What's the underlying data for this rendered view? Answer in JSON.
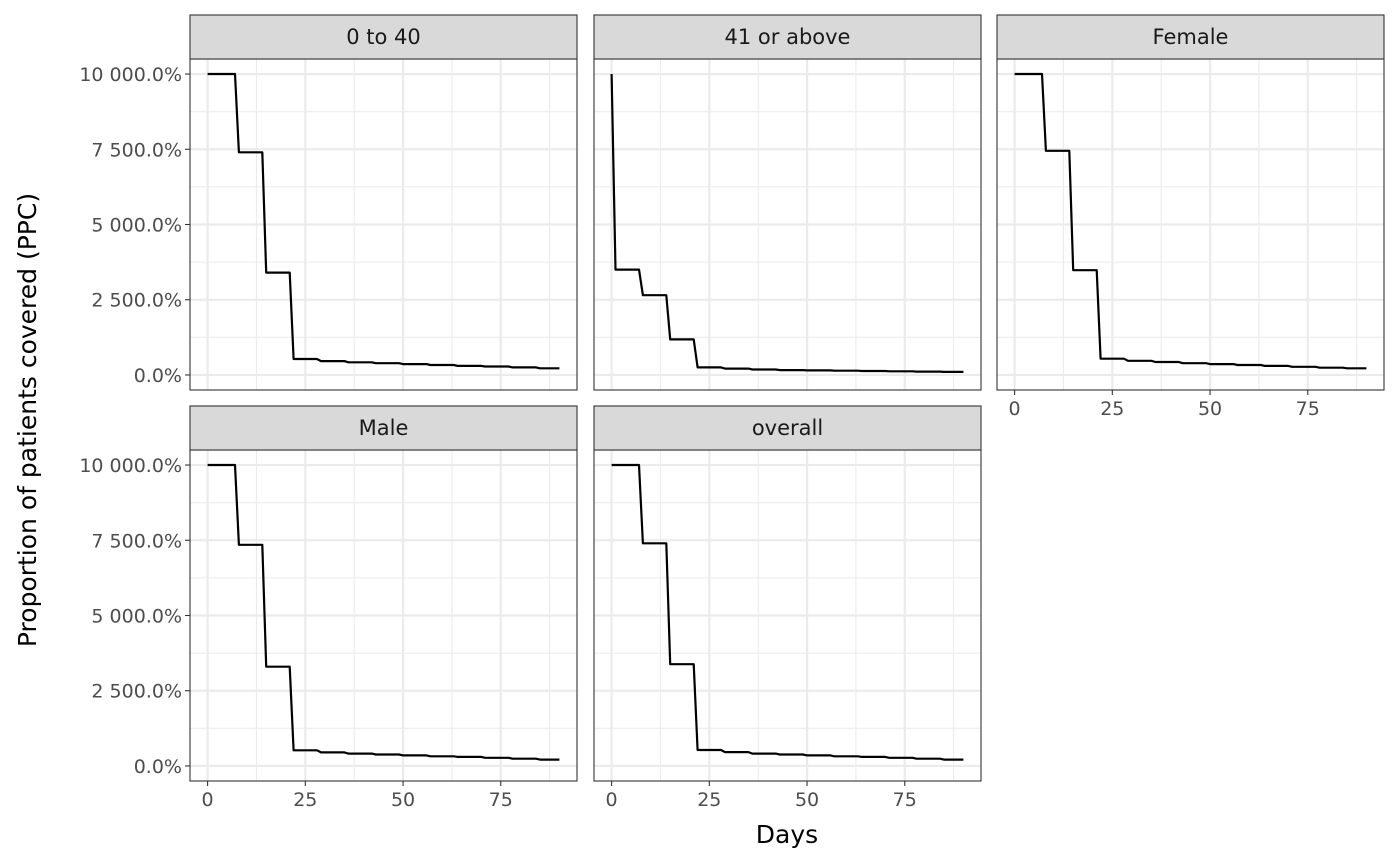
{
  "chart_data": {
    "type": "line",
    "line_shape": "step",
    "title": "",
    "xlabel": "Days",
    "ylabel": "Proportion of patients covered (PPC)",
    "xlim": [
      -4.5,
      94.5
    ],
    "ylim": [
      -500,
      10500
    ],
    "x_ticks": [
      0,
      25,
      50,
      75
    ],
    "x_tick_labels": [
      "0",
      "25",
      "50",
      "75"
    ],
    "y_ticks": [
      0,
      2500,
      5000,
      7500,
      10000
    ],
    "y_tick_labels": [
      "0.0%",
      "2 500.0%",
      "5 000.0%",
      "7 500.0%",
      "10 000.0%"
    ],
    "grid": true,
    "panels": [
      {
        "strip": "0 to 40",
        "x": [
          0,
          7,
          8,
          14,
          15,
          21,
          22,
          28,
          29,
          35,
          36,
          42,
          43,
          49,
          50,
          56,
          57,
          63,
          64,
          70,
          71,
          77,
          78,
          84,
          85,
          90
        ],
        "y": [
          10000,
          10000,
          7400,
          7400,
          3400,
          3400,
          530,
          530,
          460,
          460,
          420,
          420,
          390,
          390,
          360,
          360,
          330,
          330,
          300,
          300,
          280,
          280,
          250,
          250,
          220,
          220
        ]
      },
      {
        "strip": "41 or above",
        "x": [
          0,
          1,
          7,
          8,
          14,
          15,
          21,
          22,
          28,
          29,
          35,
          36,
          42,
          43,
          49,
          50,
          56,
          57,
          63,
          64,
          70,
          71,
          77,
          78,
          84,
          85,
          90
        ],
        "y": [
          10000,
          3500,
          3500,
          2650,
          2650,
          1180,
          1180,
          250,
          250,
          210,
          210,
          180,
          180,
          160,
          160,
          150,
          150,
          140,
          140,
          130,
          130,
          120,
          120,
          110,
          110,
          100,
          100
        ]
      },
      {
        "strip": "Female",
        "x": [
          0,
          7,
          8,
          14,
          15,
          21,
          22,
          28,
          29,
          35,
          36,
          42,
          43,
          49,
          50,
          56,
          57,
          63,
          64,
          70,
          71,
          77,
          78,
          84,
          85,
          90
        ],
        "y": [
          10000,
          10000,
          7450,
          7450,
          3480,
          3480,
          540,
          540,
          470,
          470,
          430,
          430,
          390,
          390,
          360,
          360,
          330,
          330,
          300,
          300,
          270,
          270,
          240,
          240,
          220,
          220
        ]
      },
      {
        "strip": "Male",
        "x": [
          0,
          7,
          8,
          14,
          15,
          21,
          22,
          28,
          29,
          35,
          36,
          42,
          43,
          49,
          50,
          56,
          57,
          63,
          64,
          70,
          71,
          77,
          78,
          84,
          85,
          90
        ],
        "y": [
          10000,
          10000,
          7350,
          7350,
          3300,
          3300,
          520,
          520,
          450,
          450,
          410,
          410,
          380,
          380,
          350,
          350,
          320,
          320,
          300,
          300,
          270,
          270,
          240,
          240,
          210,
          210
        ]
      },
      {
        "strip": "overall",
        "x": [
          0,
          7,
          8,
          14,
          15,
          21,
          22,
          28,
          29,
          35,
          36,
          42,
          43,
          49,
          50,
          56,
          57,
          63,
          64,
          70,
          71,
          77,
          78,
          84,
          85,
          90
        ],
        "y": [
          10000,
          10000,
          7400,
          7400,
          3380,
          3380,
          530,
          530,
          460,
          460,
          410,
          410,
          380,
          380,
          350,
          350,
          320,
          320,
          300,
          300,
          270,
          270,
          240,
          240,
          210,
          210
        ]
      }
    ]
  }
}
